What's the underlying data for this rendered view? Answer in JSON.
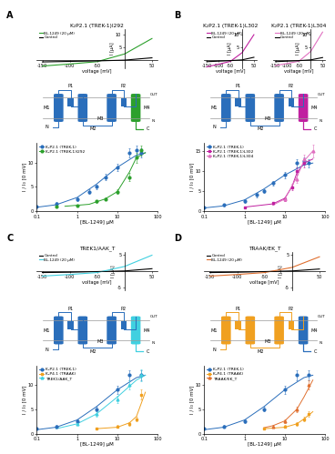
{
  "chart_data": [
    {
      "panel": "A",
      "type": "line",
      "title": "K₂P2.1 (TREK-1)I292",
      "xlabel": "voltage [mV]",
      "ylabel": "I [µA]",
      "x": [
        -150,
        -100,
        -50,
        0,
        50
      ],
      "xlim": [
        -160,
        60
      ],
      "xticks": [
        -150,
        -100,
        -50,
        50
      ],
      "ylim": [
        -3,
        12
      ],
      "yticks": [
        5,
        10
      ],
      "legend": "upper left",
      "series": [
        {
          "name": "BL-1249 (20 µM)",
          "color": "#2ca02c",
          "values": [
            -2.2,
            -1.4,
            -0.5,
            2.5,
            8.5
          ]
        },
        {
          "name": "Control",
          "color": "#000000",
          "values": [
            -0.6,
            -0.4,
            -0.2,
            0.1,
            1.0
          ]
        }
      ]
    },
    {
      "panel": "A",
      "type": "scatter",
      "xlabel": "[BL-1249] µM",
      "ylabel": "I / I₀ [0 mV]",
      "log": "x",
      "xlim": [
        0.1,
        100
      ],
      "xticks": [
        0.1,
        1,
        10,
        100
      ],
      "ylim": [
        0,
        14
      ],
      "yticks": [
        0,
        5,
        10
      ],
      "legend": "upper left",
      "series": [
        {
          "name": "K₂P2.1 (TREK-1)",
          "color": "#2a6ebb",
          "marker": "circle",
          "x": [
            0.1,
            0.3,
            1,
            2,
            3,
            5,
            10,
            20,
            30,
            40
          ],
          "values": [
            1.0,
            1.5,
            2.5,
            4.0,
            5.0,
            7.0,
            9.0,
            12.0,
            12.5,
            12.0
          ],
          "errors": [
            0.2,
            0.3,
            0.4,
            0.5,
            0.5,
            0.6,
            0.8,
            1.0,
            1.0,
            1.0
          ],
          "fit": {
            "x": [
              0.1,
              0.3,
              1,
              3,
              10,
              30,
              50
            ],
            "values": [
              0.8,
              1.3,
              2.8,
              5.5,
              9.0,
              11.5,
              12.0
            ]
          }
        },
        {
          "name": "K₂P2.1 (TREK-1)I292",
          "color": "#2ca02c",
          "marker": "circle",
          "x": [
            0.3,
            1,
            3,
            5,
            10,
            20,
            30,
            40
          ],
          "values": [
            1.0,
            1.2,
            2.0,
            2.5,
            4.0,
            7.0,
            11.0,
            12.5
          ],
          "errors": [
            0.2,
            0.2,
            0.3,
            0.3,
            0.5,
            0.8,
            1.0,
            1.0
          ],
          "fit": {
            "x": [
              0.5,
              2,
              5,
              10,
              20,
              30,
              50
            ],
            "values": [
              1.0,
              1.4,
              2.5,
              4.0,
              8.0,
              11.0,
              12.0
            ]
          }
        }
      ]
    },
    {
      "panel": "B",
      "type": "line",
      "title": "K₂P2.1 (TREK-1)L302",
      "xlabel": "voltage [mV]",
      "ylabel": "I [µA]",
      "x": [
        -150,
        -100,
        -50,
        0,
        50
      ],
      "xlim": [
        -160,
        60
      ],
      "xticks": [
        -150,
        -100,
        -50,
        50
      ],
      "ylim": [
        -3,
        12
      ],
      "yticks": [
        5,
        10
      ],
      "legend": "upper left",
      "series": [
        {
          "name": "BL-1249 (20 µM)",
          "color": "#c020a0",
          "values": [
            -2.5,
            -1.5,
            -0.4,
            3.0,
            10.0
          ]
        },
        {
          "name": "Control",
          "color": "#000000",
          "values": [
            -0.5,
            -0.3,
            -0.1,
            0.2,
            1.2
          ]
        }
      ]
    },
    {
      "panel": "B",
      "type": "line",
      "title": "K₂P2.1 (TREK-1)L304",
      "xlabel": "voltage [mV]",
      "ylabel": "I [µA]",
      "x": [
        -150,
        -100,
        -50,
        0,
        50
      ],
      "xlim": [
        -160,
        60
      ],
      "xticks": [
        -150,
        -100,
        -50,
        50
      ],
      "ylim": [
        -3,
        12
      ],
      "yticks": [
        5,
        10
      ],
      "legend": "upper left",
      "series": [
        {
          "name": "BL-1249 (20 µM)",
          "color": "#e070c0",
          "values": [
            -2.0,
            -1.2,
            -0.3,
            3.5,
            11.0
          ]
        },
        {
          "name": "Control",
          "color": "#000000",
          "values": [
            -0.5,
            -0.3,
            -0.1,
            0.2,
            1.1
          ]
        }
      ]
    },
    {
      "panel": "B",
      "type": "scatter",
      "xlabel": "[BL-1249] µM",
      "ylabel": "I / I₀ [0 mV]",
      "log": "x",
      "xlim": [
        0.1,
        100
      ],
      "xticks": [
        0.1,
        1,
        10,
        100
      ],
      "ylim": [
        0,
        17
      ],
      "yticks": [
        0,
        5,
        10,
        15
      ],
      "legend": "upper left",
      "series": [
        {
          "name": "K₂P2.1 (TREK-1)",
          "color": "#2a6ebb",
          "marker": "circle",
          "x": [
            0.1,
            0.3,
            1,
            2,
            3,
            5,
            10,
            20,
            30,
            40
          ],
          "values": [
            1.0,
            1.5,
            2.5,
            4.0,
            5.0,
            7.0,
            9.0,
            12.0,
            12.5,
            12.0
          ],
          "errors": [
            0.2,
            0.3,
            0.4,
            0.5,
            0.5,
            0.6,
            0.8,
            1.0,
            1.0,
            1.0
          ],
          "fit": {
            "x": [
              0.1,
              0.3,
              1,
              3,
              10,
              30,
              50
            ],
            "values": [
              0.8,
              1.3,
              2.8,
              5.5,
              9.0,
              11.5,
              12.0
            ]
          }
        },
        {
          "name": "K₂P2.1 (TREK-1)L302",
          "color": "#c020a0",
          "marker": "square",
          "x": [
            1,
            5,
            10,
            15,
            20,
            30
          ],
          "values": [
            1.0,
            2.0,
            3.0,
            6.0,
            10.0,
            12.0
          ],
          "errors": [
            0.2,
            0.3,
            0.5,
            0.8,
            1.0,
            1.2
          ],
          "fit": {
            "x": [
              1,
              5,
              10,
              15,
              20,
              30,
              50
            ],
            "values": [
              1.0,
              1.8,
              3.2,
              6.0,
              9.5,
              12.0,
              13.0
            ]
          }
        },
        {
          "name": "K₂P2.1 (TREK-1)L304",
          "color": "#e070c0",
          "marker": "triangle",
          "x": [
            10,
            20,
            30,
            50
          ],
          "values": [
            3.0,
            8.0,
            13.0,
            15.0
          ],
          "errors": [
            0.5,
            1.0,
            1.2,
            1.5
          ],
          "fit": {
            "x": [
              5,
              10,
              20,
              30,
              50
            ],
            "values": [
              1.5,
              3.0,
              8.5,
              12.5,
              15.0
            ]
          }
        }
      ]
    },
    {
      "panel": "C",
      "type": "line",
      "title": "TREK1/AAK_T",
      "xlabel": "voltage [mV]",
      "ylabel": "I [µA]",
      "x": [
        -150,
        -100,
        -50,
        0,
        50
      ],
      "xlim": [
        -160,
        60
      ],
      "xticks": [
        -150,
        -100,
        -50,
        50
      ],
      "ylim": [
        -6,
        6
      ],
      "yticks": [
        -5,
        5
      ],
      "legend": "upper left",
      "series": [
        {
          "name": "Control",
          "color": "#000000",
          "values": [
            -0.4,
            -0.3,
            -0.1,
            0.1,
            0.8
          ]
        },
        {
          "name": "BL-1249 (20 µM)",
          "color": "#40d0e0",
          "values": [
            -1.5,
            -1.0,
            -0.4,
            1.5,
            5.0
          ]
        }
      ]
    },
    {
      "panel": "C",
      "type": "scatter",
      "xlabel": "[BL-1249] µM",
      "ylabel": "I / I₀ [0 mV]",
      "log": "x",
      "xlim": [
        0.1,
        100
      ],
      "xticks": [
        0.1,
        1,
        10,
        100
      ],
      "ylim": [
        0,
        14
      ],
      "yticks": [
        0,
        5,
        10
      ],
      "legend": "upper left",
      "series": [
        {
          "name": "K₂P2.1 (TREK-1)",
          "color": "#2a6ebb",
          "marker": "circle",
          "x": [
            0.1,
            0.3,
            1,
            3,
            10,
            20,
            40
          ],
          "values": [
            1.0,
            1.5,
            2.5,
            5.0,
            9.0,
            12.0,
            12.0
          ],
          "errors": [
            0.2,
            0.3,
            0.4,
            0.5,
            0.8,
            1.0,
            1.0
          ],
          "fit": {
            "x": [
              0.1,
              0.3,
              1,
              3,
              10,
              30,
              50
            ],
            "values": [
              0.8,
              1.3,
              2.8,
              5.5,
              9.0,
              11.5,
              12.0
            ]
          }
        },
        {
          "name": "K₂P4.1 (TRAAK)",
          "color": "#f0a020",
          "marker": "square",
          "x": [
            3,
            10,
            20,
            30,
            40
          ],
          "values": [
            1.0,
            1.5,
            2.0,
            3.0,
            8.0
          ],
          "errors": [
            0.2,
            0.3,
            0.4,
            0.5,
            1.0
          ],
          "fit": {
            "x": [
              3,
              10,
              20,
              30,
              50
            ],
            "values": [
              1.0,
              1.3,
              2.2,
              3.5,
              8.5
            ]
          }
        },
        {
          "name": "TREK1/AAK_T",
          "color": "#40d0e0",
          "marker": "triangle",
          "x": [
            1,
            3,
            10,
            20,
            40
          ],
          "values": [
            2.0,
            4.0,
            7.0,
            10.0,
            12.0
          ],
          "errors": [
            0.3,
            0.5,
            0.8,
            1.0,
            1.2
          ],
          "fit": {
            "x": [
              0.3,
              1,
              3,
              10,
              30,
              50
            ],
            "values": [
              1.0,
              2.0,
              4.0,
              7.5,
              11.0,
              12.0
            ]
          }
        }
      ]
    },
    {
      "panel": "D",
      "type": "line",
      "title": "TRAAK/EK_T",
      "xlabel": "voltage [mV]",
      "ylabel": "I [µA]",
      "x": [
        -150,
        -100,
        -50,
        0,
        50
      ],
      "xlim": [
        -160,
        60
      ],
      "xticks": [
        -150,
        -100,
        -50,
        50
      ],
      "ylim": [
        -6,
        6
      ],
      "yticks": [
        -5,
        5
      ],
      "legend": "upper left",
      "series": [
        {
          "name": "Control",
          "color": "#000000",
          "values": [
            -0.4,
            -0.3,
            -0.1,
            0.1,
            0.7
          ]
        },
        {
          "name": "BL-1249 (20 µM)",
          "color": "#e07030",
          "values": [
            -1.5,
            -1.0,
            -0.4,
            1.2,
            4.5
          ]
        }
      ]
    },
    {
      "panel": "D",
      "type": "scatter",
      "xlabel": "[BL-1249] µM",
      "ylabel": "I / I₀ [0 mV]",
      "log": "x",
      "xlim": [
        0.1,
        100
      ],
      "xticks": [
        0.1,
        1,
        10,
        100
      ],
      "ylim": [
        0,
        14
      ],
      "yticks": [
        0,
        5,
        10
      ],
      "legend": "upper left",
      "series": [
        {
          "name": "K₂P2.1 (TREK-1)",
          "color": "#2a6ebb",
          "marker": "circle",
          "x": [
            0.1,
            0.3,
            1,
            3,
            10,
            20,
            40
          ],
          "values": [
            1.0,
            1.5,
            2.5,
            5.0,
            9.0,
            12.0,
            12.0
          ],
          "errors": [
            0.2,
            0.3,
            0.4,
            0.5,
            0.8,
            1.0,
            1.0
          ],
          "fit": {
            "x": [
              0.1,
              0.3,
              1,
              3,
              10,
              30,
              50
            ],
            "values": [
              0.8,
              1.3,
              2.8,
              5.5,
              9.0,
              11.5,
              12.0
            ]
          }
        },
        {
          "name": "K₂P4.1 (TRAAK)",
          "color": "#f0a020",
          "marker": "square",
          "x": [
            3,
            10,
            20,
            30,
            40
          ],
          "values": [
            1.0,
            1.5,
            2.0,
            3.0,
            4.0
          ],
          "errors": [
            0.2,
            0.3,
            0.4,
            0.5,
            0.6
          ],
          "fit": {
            "x": [
              3,
              10,
              20,
              30,
              50
            ],
            "values": [
              1.0,
              1.3,
              2.0,
              3.0,
              4.5
            ]
          }
        },
        {
          "name": "TRAAK/EK_T",
          "color": "#e07030",
          "marker": "triangle",
          "x": [
            5,
            10,
            20,
            40
          ],
          "values": [
            1.5,
            2.5,
            5.0,
            10.0
          ],
          "errors": [
            0.3,
            0.4,
            0.6,
            1.0
          ],
          "fit": {
            "x": [
              3,
              5,
              10,
              20,
              30,
              50
            ],
            "values": [
              1.2,
              1.6,
              2.6,
              5.0,
              7.5,
              11.0
            ]
          }
        }
      ]
    }
  ],
  "diagrams": [
    {
      "panel": "A",
      "color": "#2a6ebb",
      "highlight": "#2ca02c",
      "labels": {
        "P1": "P1",
        "P2": "P2",
        "M1": "M1",
        "M2": "M2",
        "M3": "M3",
        "M4": "M4",
        "N": "N",
        "C": "C",
        "OUT": "OUT",
        "IN": "IN"
      }
    },
    {
      "panel": "B",
      "color": "#2a6ebb",
      "highlight": "#c020a0",
      "labels": {
        "P1": "P1",
        "P2": "P2",
        "M1": "M1",
        "M2": "M2",
        "M3": "M3",
        "M4": "M4",
        "N": "N",
        "C": "C",
        "OUT": "OUT",
        "IN": "IN"
      }
    },
    {
      "panel": "C",
      "color": "#2a6ebb",
      "highlight": "#40d0e0",
      "labels": {
        "P1": "P1",
        "P2": "P2",
        "M1": "M1",
        "M2": "M2",
        "M3": "M3",
        "M4": "M4",
        "N": "N",
        "C": "C",
        "OUT": "OUT",
        "IN": "IN"
      }
    },
    {
      "panel": "D",
      "color": "#f0a020",
      "highlight": "#2a6ebb",
      "labels": {
        "P1": "P1",
        "P2": "P2",
        "M1": "M1",
        "M2": "M2",
        "M3": "M3",
        "M4": "M4",
        "N": "N",
        "C": "C",
        "OUT": "OUT",
        "IN": "IN"
      }
    }
  ]
}
